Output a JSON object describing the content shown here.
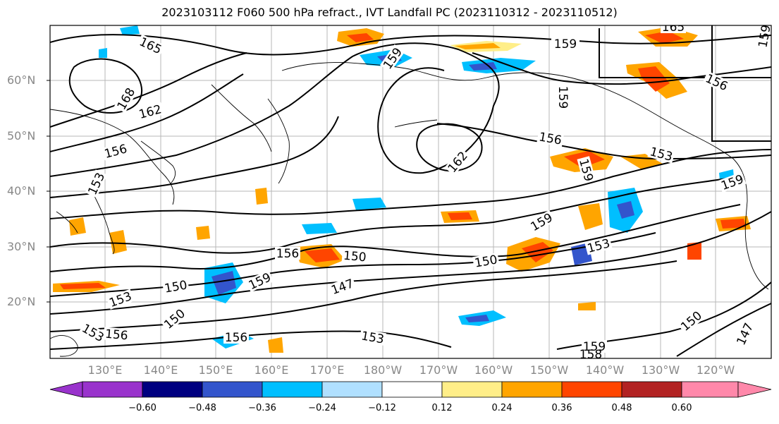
{
  "title": "2023103112 F060 500 hPa refract., IVT Landfall PC (2023110312 - 2023110512)",
  "lat_labels": [
    "60°N",
    "50°N",
    "40°N",
    "30°N",
    "20°N"
  ],
  "lon_labels": [
    "130°E",
    "140°E",
    "150°E",
    "160°E",
    "170°E",
    "180°W",
    "170°W",
    "160°W",
    "150°W",
    "140°W",
    "130°W",
    "120°W"
  ],
  "colorbar": {
    "tick_labels": [
      "−0.60",
      "−0.48",
      "−0.36",
      "−0.24",
      "−0.12",
      "0.12",
      "0.24",
      "0.36",
      "0.48",
      "0.60"
    ],
    "colors": [
      "#9933cc",
      "#000080",
      "#3355cc",
      "#00bfff",
      "#b0e0ff",
      "#ffffff",
      "#ffee88",
      "#ffa500",
      "#ff4500",
      "#b22222",
      "#ff88aa"
    ]
  },
  "contour_labels": [
    "165",
    "168",
    "162",
    "156",
    "153",
    "159",
    "162",
    "159",
    "156",
    "153",
    "159",
    "156",
    "159",
    "150",
    "156",
    "150",
    "147",
    "153",
    "159",
    "150",
    "153",
    "156",
    "150",
    "153",
    "156",
    "150",
    "159",
    "158",
    "147",
    "165",
    "156",
    "159"
  ],
  "colors": {
    "axis_label": "#888888",
    "contour": "#000000",
    "grid": "#999999"
  }
}
